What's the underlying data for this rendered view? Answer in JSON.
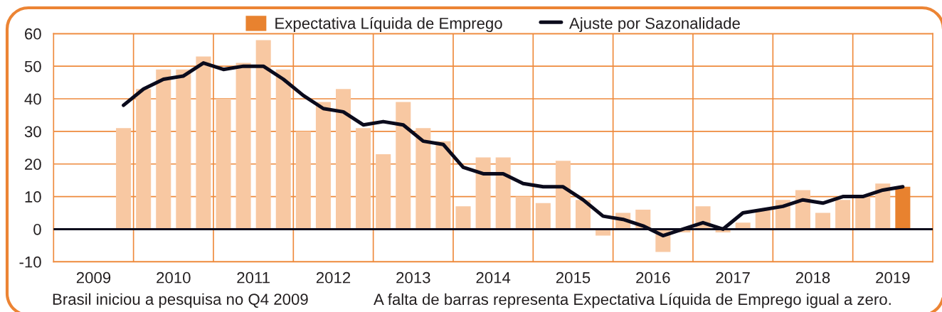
{
  "chart_data": {
    "type": "bar",
    "x": [
      2009.875,
      2010.125,
      2010.375,
      2010.625,
      2010.875,
      2011.125,
      2011.375,
      2011.625,
      2011.875,
      2012.125,
      2012.375,
      2012.625,
      2012.875,
      2013.125,
      2013.375,
      2013.625,
      2013.875,
      2014.125,
      2014.375,
      2014.625,
      2014.875,
      2015.125,
      2015.375,
      2015.625,
      2015.875,
      2016.125,
      2016.375,
      2016.625,
      2016.875,
      2017.125,
      2017.375,
      2017.625,
      2017.875,
      2018.125,
      2018.375,
      2018.625,
      2018.875,
      2019.125,
      2019.375,
      2019.625
    ],
    "xlim": [
      2009,
      2020
    ],
    "xticks": [
      {
        "value": 2009.5,
        "label": "2009"
      },
      {
        "value": 2010.5,
        "label": "2010"
      },
      {
        "value": 2011.5,
        "label": "2011"
      },
      {
        "value": 2012.5,
        "label": "2012"
      },
      {
        "value": 2013.5,
        "label": "2013"
      },
      {
        "value": 2014.5,
        "label": "2014"
      },
      {
        "value": 2015.5,
        "label": "2015"
      },
      {
        "value": 2016.5,
        "label": "2016"
      },
      {
        "value": 2017.5,
        "label": "2017"
      },
      {
        "value": 2018.5,
        "label": "2018"
      },
      {
        "value": 2019.5,
        "label": "2019"
      }
    ],
    "ylim": [
      -10,
      60
    ],
    "yticks": [
      -10,
      0,
      10,
      20,
      30,
      40,
      50,
      60
    ],
    "grid": "y",
    "legend": "top",
    "series": [
      {
        "name": "Expectativa Líquida de Emprego",
        "color": "#e8822f",
        "colors": [
          "#f8c8a2",
          "#f8c8a2",
          "#f8c8a2",
          "#f8c8a2",
          "#f8c8a2",
          "#f8c8a2",
          "#f8c8a2",
          "#f8c8a2",
          "#f8c8a2",
          "#f8c8a2",
          "#f8c8a2",
          "#f8c8a2",
          "#f8c8a2",
          "#f8c8a2",
          "#f8c8a2",
          "#f8c8a2",
          "#f8c8a2",
          "#f8c8a2",
          "#f8c8a2",
          "#f8c8a2",
          "#f8c8a2",
          "#f8c8a2",
          "#f8c8a2",
          "#f8c8a2",
          "#f8c8a2",
          "#f8c8a2",
          "#f8c8a2",
          "#f8c8a2",
          "#f8c8a2",
          "#f8c8a2",
          "#f8c8a2",
          "#f8c8a2",
          "#f8c8a2",
          "#f8c8a2",
          "#f8c8a2",
          "#f8c8a2",
          "#f8c8a2",
          "#f8c8a2",
          "#f8c8a2",
          "#e8822f"
        ],
        "values": [
          31,
          43,
          49,
          49,
          53,
          40,
          51,
          58,
          49,
          30,
          39,
          43,
          31,
          23,
          39,
          31,
          27,
          7,
          22,
          22,
          10,
          8,
          21,
          9,
          -2,
          5,
          6,
          -7,
          -1,
          7,
          -1,
          2,
          6,
          9,
          12,
          5,
          9,
          10,
          14,
          13
        ]
      },
      {
        "name": "Ajuste por Sazonalidade",
        "type": "line",
        "color": "#0b0b1c",
        "values": [
          38,
          43,
          46,
          47,
          51,
          49,
          50,
          50,
          46,
          41,
          37,
          36,
          32,
          33,
          32,
          27,
          26,
          19,
          17,
          17,
          14,
          13,
          13,
          9,
          4,
          3,
          1,
          -2,
          0,
          2,
          0,
          5,
          6,
          7,
          9,
          8,
          10,
          10,
          12,
          13
        ]
      }
    ],
    "ref_lines": [
      {
        "axis": "x",
        "value": 2010,
        "color": "#ee8a3c"
      },
      {
        "axis": "x",
        "value": 2011,
        "color": "#ee8a3c"
      },
      {
        "axis": "x",
        "value": 2012,
        "color": "#ee8a3c"
      },
      {
        "axis": "x",
        "value": 2013,
        "color": "#ee8a3c"
      },
      {
        "axis": "x",
        "value": 2014,
        "color": "#ee8a3c"
      },
      {
        "axis": "x",
        "value": 2015,
        "color": "#ee8a3c"
      },
      {
        "axis": "x",
        "value": 2016,
        "color": "#ee8a3c"
      },
      {
        "axis": "x",
        "value": 2017,
        "color": "#ee8a3c"
      },
      {
        "axis": "x",
        "value": 2018,
        "color": "#ee8a3c"
      },
      {
        "axis": "x",
        "value": 2019,
        "color": "#ee8a3c"
      },
      {
        "axis": "y",
        "value": 0,
        "color": "#0b0b1c"
      }
    ],
    "annotations": [
      "Brasil iniciou a pesquisa no Q4 2009",
      "A falta de barras representa Expectativa Líquida de Emprego igual a zero."
    ]
  }
}
